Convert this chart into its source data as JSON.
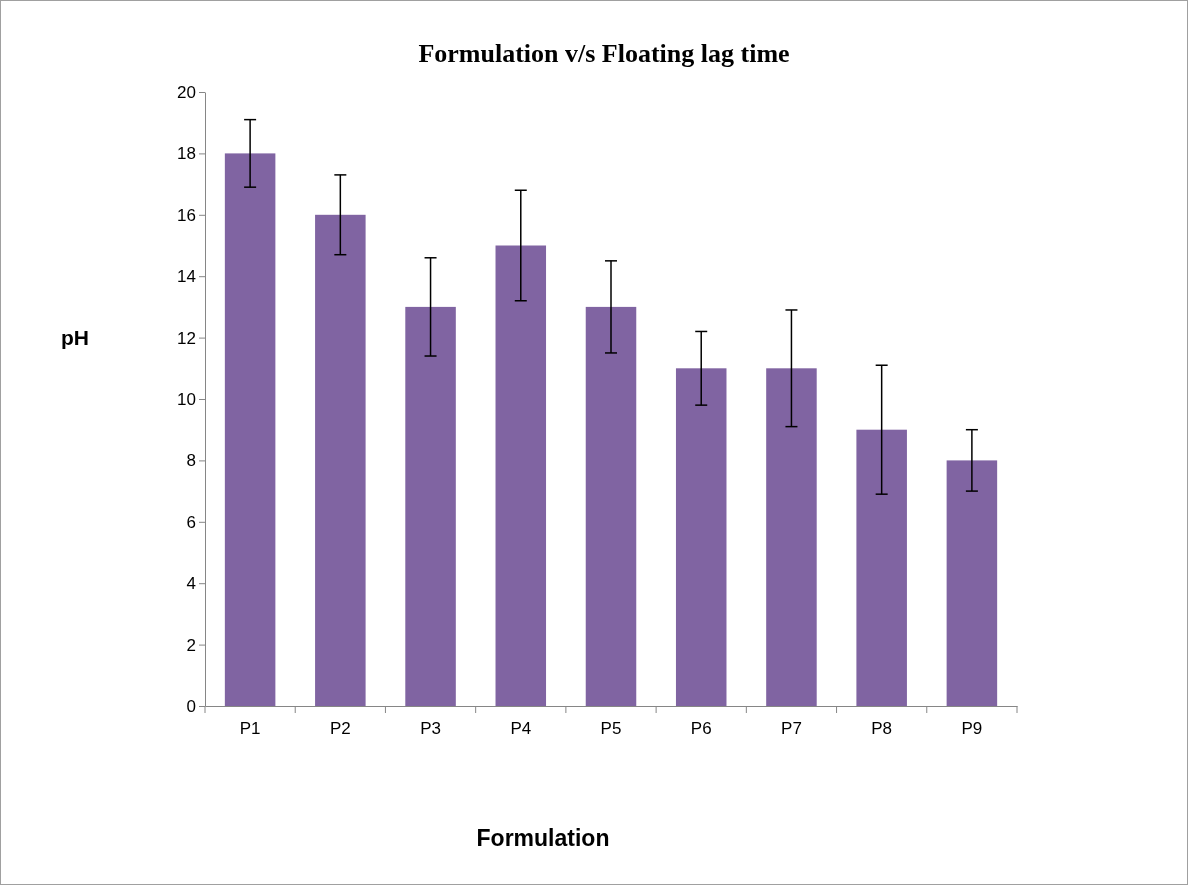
{
  "chart_data": {
    "type": "bar",
    "title": "Formulation v/s Floating lag time",
    "xlabel": "Formulation",
    "ylabel": "pH",
    "categories": [
      "P1",
      "P2",
      "P3",
      "P4",
      "P5",
      "P6",
      "P7",
      "P8",
      "P9"
    ],
    "values": [
      18,
      16,
      13,
      15,
      13,
      11,
      11,
      9,
      8
    ],
    "errors": [
      1.1,
      1.3,
      1.6,
      1.8,
      1.5,
      1.2,
      1.9,
      2.1,
      1
    ],
    "color": "#8064a2",
    "ylim": [
      0,
      20
    ],
    "yticks": [
      0,
      2,
      4,
      6,
      8,
      10,
      12,
      14,
      16,
      18,
      20
    ],
    "grid": false,
    "legend": false
  }
}
